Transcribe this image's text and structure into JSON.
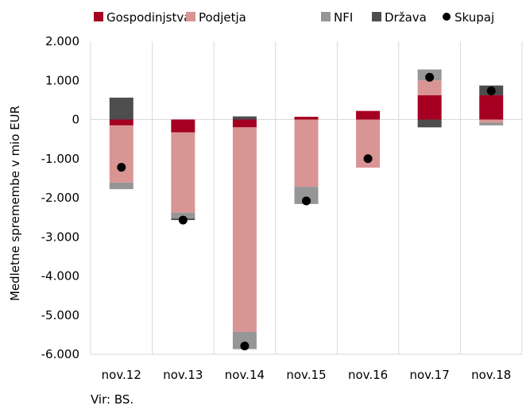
{
  "chart_data": {
    "type": "bar",
    "stacked": true,
    "categories": [
      "nov.12",
      "nov.13",
      "nov.14",
      "nov.15",
      "nov.16",
      "nov.17",
      "nov.18"
    ],
    "ylabel": "Medletne spremembe v mio EUR",
    "ylim": [
      -6000,
      2000
    ],
    "yticks": [
      2000,
      1000,
      0,
      -1000,
      -2000,
      -3000,
      -4000,
      -5000,
      -6000
    ],
    "ytick_labels": [
      "2.000",
      "1.000",
      "0",
      "-1.000",
      "-2.000",
      "-3.000",
      "-4.000",
      "-5.000",
      "-6.000"
    ],
    "grid": "vertical category separators",
    "legend_position": "top",
    "series": [
      {
        "name": "Gospodinjstva",
        "color": "#a50021",
        "values": [
          -150,
          -330,
          -200,
          70,
          220,
          620,
          620
        ]
      },
      {
        "name": "Podjetja",
        "color": "#d99594",
        "values": [
          -1460,
          -2050,
          -5230,
          -1720,
          -1230,
          380,
          -80
        ]
      },
      {
        "name": "NFI",
        "color": "#969696",
        "values": [
          -170,
          -150,
          -440,
          -440,
          0,
          280,
          -70
        ]
      },
      {
        "name": "Država",
        "color": "#4d4d4d",
        "values": [
          560,
          -40,
          80,
          0,
          0,
          -200,
          250
        ]
      }
    ],
    "line_series": {
      "name": "Skupaj",
      "color": "#000000",
      "values": [
        -1220,
        -2570,
        -5790,
        -2080,
        -1000,
        1080,
        730
      ]
    }
  },
  "source_text": "Vir: BS."
}
